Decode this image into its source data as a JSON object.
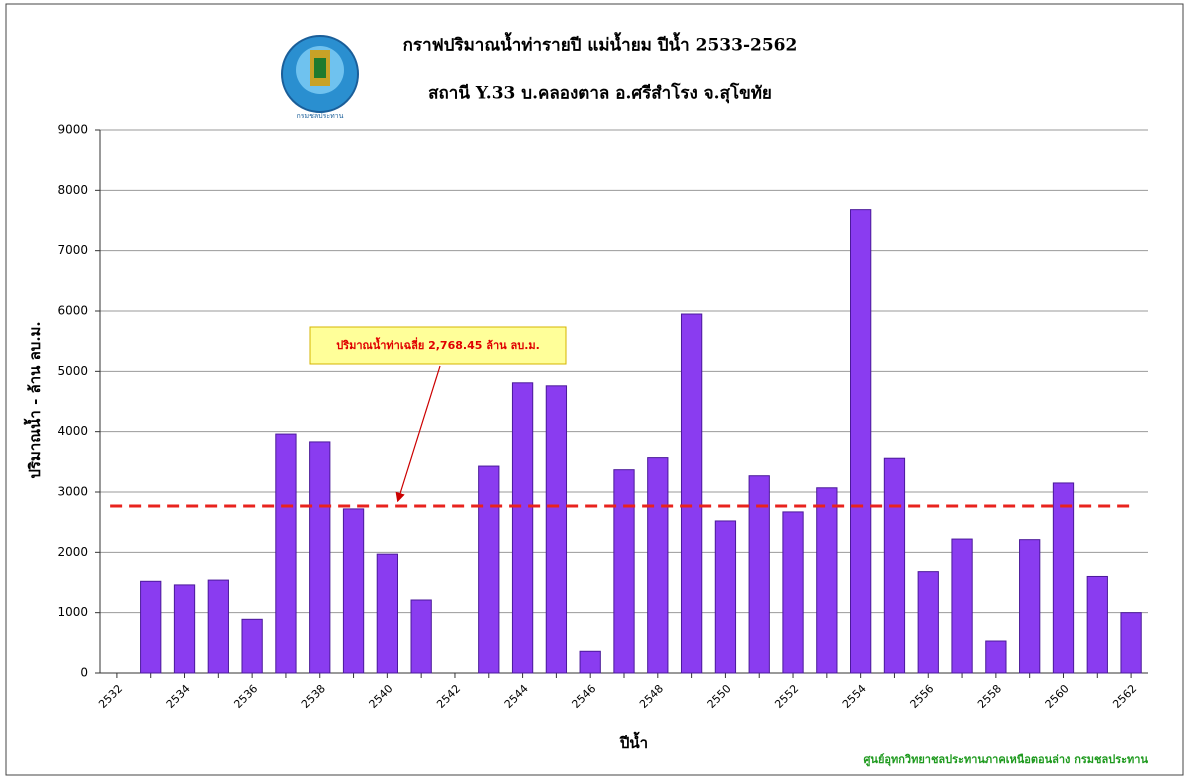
{
  "chart_data": {
    "type": "bar",
    "title": "กราฟปริมาณน้ำท่ารายปี แม่น้ำยม ปีน้ำ 2533-2562",
    "subtitle": "สถานี  Y.33 บ.คลองตาล อ.ศรีสำโรง จ.สุโขทัย",
    "logo_text": "กรมชลประทาน",
    "y_label": "ปริมาณน้ำ  - ล้าน ลบ.ม.",
    "x_label": "ปีน้ำ",
    "footer": "ศูนย์อุทกวิทยาชลประทานภาคเหนือตอนล่าง  กรมชลประทาน",
    "categories": [
      "2532",
      null,
      "2534",
      null,
      "2536",
      null,
      "2538",
      null,
      "2540",
      null,
      "2542",
      null,
      "2544",
      null,
      "2546",
      null,
      "2548",
      null,
      "2550",
      null,
      "2552",
      null,
      "2554",
      null,
      "2556",
      null,
      "2558",
      null,
      "2560",
      null,
      "2562"
    ],
    "values": [
      null,
      1520,
      1460,
      1540,
      890,
      3960,
      3830,
      2720,
      1970,
      1210,
      null,
      3430,
      4810,
      4760,
      360,
      3370,
      3570,
      5950,
      2520,
      3270,
      2670,
      3070,
      7680,
      3560,
      1680,
      2220,
      530,
      2210,
      3150,
      1600,
      1000
    ],
    "color": "#8a3cf0",
    "average": 2768.45,
    "average_color": "#e8231e",
    "average_label": "ปริมาณน้ำท่าเฉลี่ย 2,768.45 ล้าน ลบ.ม.",
    "ylim": [
      0,
      9000
    ],
    "yticks": [
      0,
      1000,
      2000,
      3000,
      4000,
      5000,
      6000,
      7000,
      8000,
      9000
    ],
    "grid": true
  }
}
